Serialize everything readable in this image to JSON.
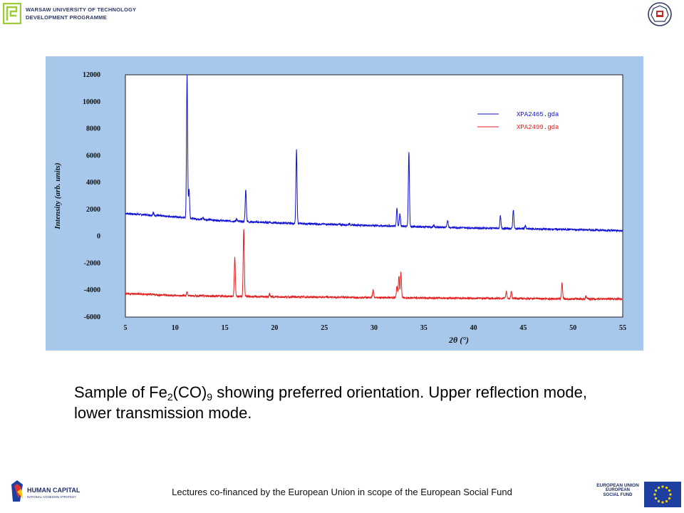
{
  "header": {
    "wut_line1": "WARSAW UNIVERSITY OF TECHNOLOGY",
    "wut_line2": "DEVELOPMENT PROGRAMME"
  },
  "chart_data": {
    "type": "line",
    "title": "",
    "xlabel": "2θ (°)",
    "ylabel": "Intensity (arb. units)",
    "xlim": [
      5,
      55
    ],
    "ylim": [
      -6000,
      12000
    ],
    "x_ticks": [
      5,
      10,
      15,
      20,
      25,
      30,
      35,
      40,
      45,
      50,
      55
    ],
    "y_ticks": [
      -6000,
      -4000,
      -2000,
      0,
      2000,
      4000,
      6000,
      8000,
      10000,
      12000
    ],
    "grid": false,
    "legend_position": "top-right",
    "series": [
      {
        "name": "XPA2465.gda",
        "color": "#1010d0",
        "baseline": [
          [
            5,
            1700
          ],
          [
            10,
            1450
          ],
          [
            12,
            1300
          ],
          [
            15,
            1150
          ],
          [
            20,
            1000
          ],
          [
            25,
            900
          ],
          [
            30,
            800
          ],
          [
            35,
            700
          ],
          [
            40,
            620
          ],
          [
            45,
            560
          ],
          [
            50,
            500
          ],
          [
            55,
            420
          ]
        ],
        "peaks": [
          [
            7.8,
            1750
          ],
          [
            11.2,
            12000
          ],
          [
            11.4,
            3500
          ],
          [
            12.8,
            1400
          ],
          [
            16.2,
            1300
          ],
          [
            17.1,
            3500
          ],
          [
            19.5,
            1100
          ],
          [
            22.2,
            6400
          ],
          [
            27.5,
            950
          ],
          [
            32.3,
            2100
          ],
          [
            32.6,
            1700
          ],
          [
            33.5,
            6300
          ],
          [
            36.0,
            800
          ],
          [
            37.4,
            1200
          ],
          [
            42.7,
            1500
          ],
          [
            44.0,
            2000
          ],
          [
            45.2,
            800
          ]
        ]
      },
      {
        "name": "XPA2499.gda",
        "color": "#e02020",
        "baseline": [
          [
            5,
            -4250
          ],
          [
            10,
            -4400
          ],
          [
            15,
            -4450
          ],
          [
            20,
            -4500
          ],
          [
            25,
            -4520
          ],
          [
            30,
            -4550
          ],
          [
            35,
            -4580
          ],
          [
            40,
            -4600
          ],
          [
            45,
            -4620
          ],
          [
            50,
            -4650
          ],
          [
            55,
            -4650
          ]
        ],
        "peaks": [
          [
            11.2,
            -4100
          ],
          [
            16.0,
            -1600
          ],
          [
            16.9,
            600
          ],
          [
            19.5,
            -4300
          ],
          [
            29.9,
            -4000
          ],
          [
            32.3,
            -3700
          ],
          [
            32.5,
            -2900
          ],
          [
            32.7,
            -2700
          ],
          [
            43.3,
            -4100
          ],
          [
            43.8,
            -4100
          ],
          [
            48.9,
            -3500
          ],
          [
            51.3,
            -4450
          ]
        ]
      }
    ]
  },
  "caption": {
    "part1": "Sample of Fe",
    "sub1": "2",
    "part2": "(CO)",
    "sub2": "9",
    "part3": " showing preferred orientation. Upper reflection mode, lower transmission mode."
  },
  "footer": {
    "text": "Lectures co-financed by the European Union in scope of the European Social Fund",
    "hc_line1": "HUMAN CAPITAL",
    "hc_line2": "NATIONAL COHESION STRATEGY",
    "eu_line1": "EUROPEAN UNION",
    "eu_line2": "EUROPEAN",
    "eu_line3": "SOCIAL FUND"
  }
}
